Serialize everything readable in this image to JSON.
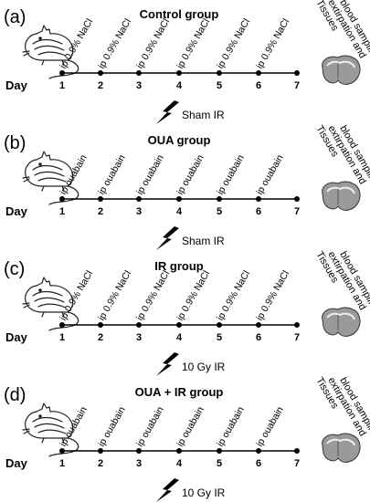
{
  "day_label": "Day",
  "day_numbers": [
    "1",
    "2",
    "3",
    "4",
    "5",
    "6",
    "7"
  ],
  "tissue_lines": [
    "Tissues",
    "extirpation and",
    "blood sampling"
  ],
  "panels": [
    {
      "label": "(a)",
      "title": "Control group",
      "injections": [
        "ip 0.9% NaCl",
        "ip 0.9% NaCl",
        "ip 0.9% NaCl",
        "ip 0.9% NaCl",
        "ip 0.9% NaCl",
        "ip 0.9% NaCl"
      ],
      "irradiation": "Sham IR"
    },
    {
      "label": "(b)",
      "title": "OUA group",
      "injections": [
        "ip ouabain",
        "ip ouabain",
        "ip ouabain",
        "ip ouabain",
        "ip ouabain",
        "ip ouabain"
      ],
      "irradiation": "Sham IR"
    },
    {
      "label": "(c)",
      "title": "IR group",
      "injections": [
        "ip 0.9% NaCl",
        "ip 0.9% NaCl",
        "ip 0.9% NaCl",
        "ip 0.9% NaCl",
        "ip 0.9% NaCl",
        "ip 0.9% NaCl"
      ],
      "irradiation": "10 Gy IR"
    },
    {
      "label": "(d)",
      "title": "OUA + IR group",
      "injections": [
        "ip ouabain",
        "ip ouabain",
        "ip ouabain",
        "ip ouabain",
        "ip ouabain",
        "ip ouabain"
      ],
      "irradiation": "10 Gy IR"
    }
  ],
  "icons": {
    "animal": "rat-icon",
    "radiation": "lightning-bolt-icon",
    "organ": "heart-organ-icon"
  }
}
